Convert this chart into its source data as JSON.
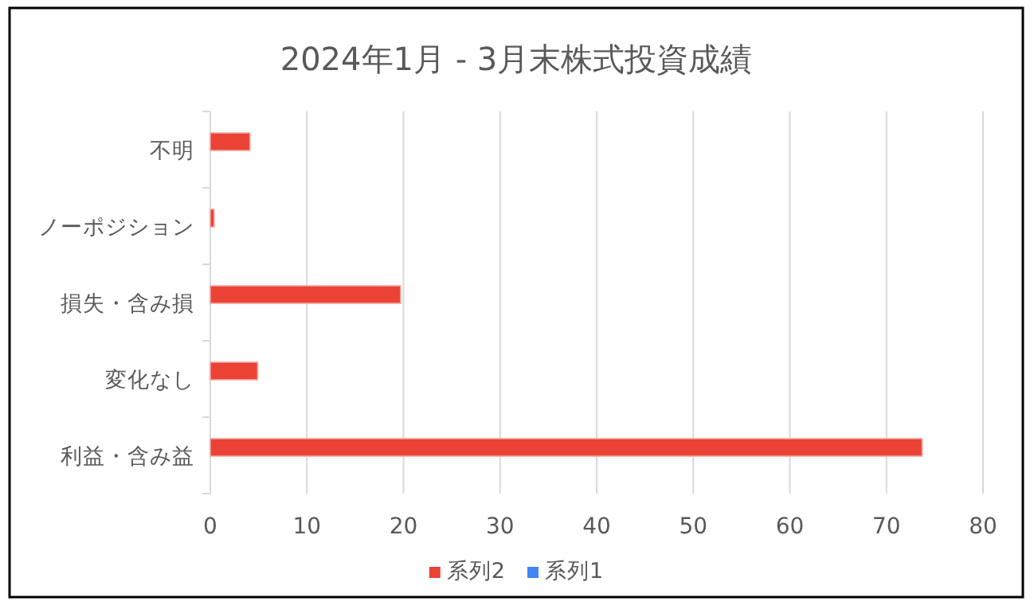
{
  "chart_data": {
    "type": "bar",
    "orientation": "horizontal",
    "title": "2024年1月 - 3月末株式投資成績",
    "categories": [
      "不明",
      "ノーポジション",
      "損失・含み損",
      "変化なし",
      "利益・含み益"
    ],
    "series": [
      {
        "name": "系列2",
        "color": "#ea4335",
        "values": [
          4.1,
          0.4,
          19.7,
          4.9,
          73.7
        ]
      },
      {
        "name": "系列1",
        "color": "#4285f4",
        "values": [
          null,
          null,
          null,
          null,
          null
        ]
      }
    ],
    "xlim": [
      0,
      80
    ],
    "xticks": [
      0,
      10,
      20,
      30,
      40,
      50,
      60,
      70,
      80
    ],
    "grid": "x",
    "legend": "bottom"
  }
}
